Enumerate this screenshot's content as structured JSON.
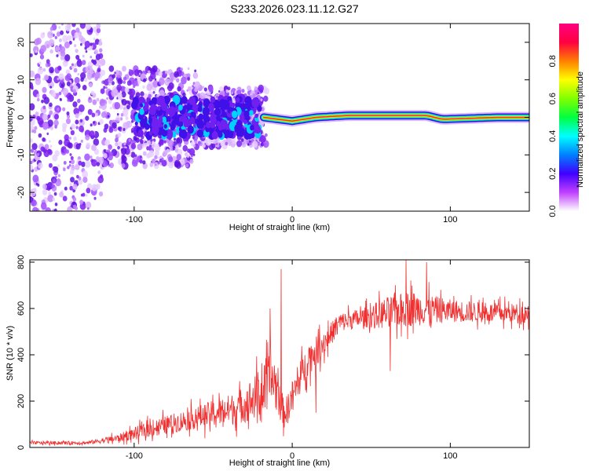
{
  "title": "S233.2026.023.11.12.G27",
  "chart_data": [
    {
      "type": "heatmap",
      "name": "spectrogram",
      "xlabel": "Height of straight line (km)",
      "ylabel": "Frequency (Hz)",
      "xlim": [
        -166,
        150
      ],
      "ylim": [
        -25,
        25
      ],
      "x_ticks": [
        -100,
        0,
        100
      ],
      "y_ticks": [
        -20,
        -10,
        0,
        10,
        20
      ],
      "x_tick_labels": [
        "-100",
        "0",
        "100"
      ],
      "y_tick_labels": [
        "-20",
        "-10",
        "0",
        "10",
        "20"
      ],
      "colorbar": {
        "label": "Normalized spectral amplitude",
        "range": [
          0,
          1
        ],
        "ticks": [
          0.0,
          0.2,
          0.4,
          0.6,
          0.8
        ],
        "tick_labels": [
          "0.0",
          "0.2",
          "0.4",
          "0.6",
          "0.8"
        ],
        "colors": [
          "#ffffff",
          "#c040ff",
          "#4000ff",
          "#0080ff",
          "#00ffff",
          "#00ff40",
          "#80ff00",
          "#ffff00",
          "#ff8000",
          "#ff0040",
          "#ff0080"
        ]
      },
      "ridge": [
        {
          "x": -18,
          "freq": 0.0
        },
        {
          "x": 0,
          "freq": -1.0
        },
        {
          "x": 15,
          "freq": 0.0
        },
        {
          "x": 35,
          "freq": 0.5
        },
        {
          "x": 60,
          "freq": 0.5
        },
        {
          "x": 85,
          "freq": 0.5
        },
        {
          "x": 95,
          "freq": -0.5
        },
        {
          "x": 130,
          "freq": 0.0
        },
        {
          "x": 150,
          "freq": 0.0
        }
      ]
    },
    {
      "type": "line",
      "name": "snr",
      "xlabel": "Height of straight line (km)",
      "ylabel": "SNR (10 * v/v)",
      "xlim": [
        -166,
        150
      ],
      "ylim": [
        0,
        810
      ],
      "x_ticks": [
        -100,
        0,
        100
      ],
      "y_ticks": [
        0,
        200,
        400,
        600,
        800
      ],
      "x_tick_labels": [
        "-100",
        "0",
        "100"
      ],
      "y_tick_labels": [
        "0",
        "200",
        "400",
        "600",
        "800"
      ],
      "color": "#f03030",
      "envelope": [
        {
          "x": -166,
          "mean": 20,
          "spread": 10
        },
        {
          "x": -130,
          "mean": 20,
          "spread": 10
        },
        {
          "x": -110,
          "mean": 40,
          "spread": 25
        },
        {
          "x": -90,
          "mean": 80,
          "spread": 50
        },
        {
          "x": -60,
          "mean": 130,
          "spread": 70
        },
        {
          "x": -35,
          "mean": 170,
          "spread": 100
        },
        {
          "x": -20,
          "mean": 230,
          "spread": 150
        },
        {
          "x": -12,
          "mean": 300,
          "spread": 180
        },
        {
          "x": -5,
          "mean": 140,
          "spread": 80
        },
        {
          "x": 0,
          "mean": 220,
          "spread": 100
        },
        {
          "x": 10,
          "mean": 380,
          "spread": 100
        },
        {
          "x": 20,
          "mean": 450,
          "spread": 80
        },
        {
          "x": 30,
          "mean": 540,
          "spread": 60
        },
        {
          "x": 45,
          "mean": 560,
          "spread": 60
        },
        {
          "x": 60,
          "mean": 580,
          "spread": 100
        },
        {
          "x": 75,
          "mean": 600,
          "spread": 110
        },
        {
          "x": 100,
          "mean": 590,
          "spread": 70
        },
        {
          "x": 130,
          "mean": 580,
          "spread": 60
        },
        {
          "x": 150,
          "mean": 580,
          "spread": 60
        }
      ],
      "spikes": [
        {
          "x": -7,
          "y": 770
        },
        {
          "x": -14,
          "y": 600
        },
        {
          "x": 15,
          "y": 150
        },
        {
          "x": 72,
          "y": 810
        },
        {
          "x": 85,
          "y": 800
        },
        {
          "x": 62,
          "y": 330
        }
      ]
    }
  ]
}
